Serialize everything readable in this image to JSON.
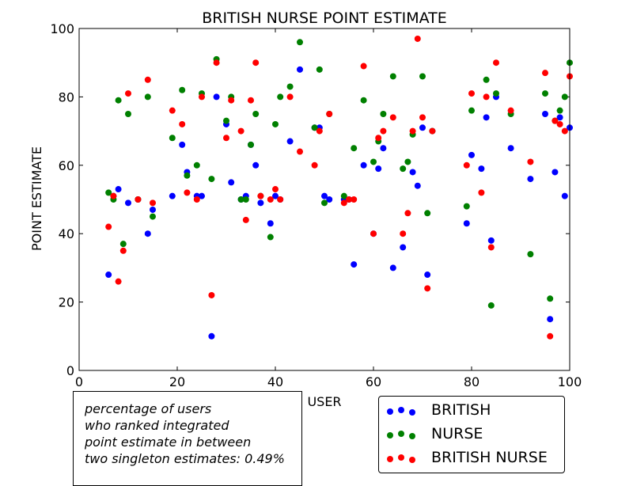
{
  "chart_data": {
    "type": "scatter",
    "title": "BRITISH NURSE POINT ESTIMATE",
    "xlabel": "USER",
    "ylabel": "POINT ESTIMATE",
    "xlim": [
      0,
      100
    ],
    "ylim": [
      0,
      100
    ],
    "xticks": [
      0,
      20,
      40,
      60,
      80,
      100
    ],
    "yticks": [
      0,
      20,
      40,
      60,
      80,
      100
    ],
    "grid": false,
    "legend_position": "bottom-right",
    "series": [
      {
        "name": "BRITISH",
        "color": "#0000ff",
        "points": [
          [
            6,
            28
          ],
          [
            7,
            51
          ],
          [
            8,
            53
          ],
          [
            10,
            49
          ],
          [
            12,
            50
          ],
          [
            14,
            40
          ],
          [
            15,
            47
          ],
          [
            19,
            51
          ],
          [
            21,
            66
          ],
          [
            22,
            58
          ],
          [
            24,
            51
          ],
          [
            25,
            51
          ],
          [
            27,
            10
          ],
          [
            28,
            80
          ],
          [
            30,
            72
          ],
          [
            31,
            55
          ],
          [
            33,
            50
          ],
          [
            34,
            51
          ],
          [
            35,
            66
          ],
          [
            36,
            60
          ],
          [
            37,
            49
          ],
          [
            39,
            43
          ],
          [
            40,
            51
          ],
          [
            41,
            50
          ],
          [
            43,
            67
          ],
          [
            45,
            88
          ],
          [
            48,
            71
          ],
          [
            49,
            71
          ],
          [
            50,
            51
          ],
          [
            51,
            50
          ],
          [
            54,
            50
          ],
          [
            55,
            50
          ],
          [
            56,
            31
          ],
          [
            58,
            60
          ],
          [
            60,
            40
          ],
          [
            61,
            59
          ],
          [
            62,
            65
          ],
          [
            64,
            30
          ],
          [
            66,
            36
          ],
          [
            68,
            58
          ],
          [
            69,
            54
          ],
          [
            70,
            71
          ],
          [
            71,
            28
          ],
          [
            72,
            70
          ],
          [
            79,
            43
          ],
          [
            80,
            63
          ],
          [
            82,
            59
          ],
          [
            83,
            74
          ],
          [
            84,
            38
          ],
          [
            85,
            80
          ],
          [
            88,
            65
          ],
          [
            92,
            56
          ],
          [
            95,
            75
          ],
          [
            96,
            15
          ],
          [
            97,
            58
          ],
          [
            98,
            74
          ],
          [
            99,
            51
          ],
          [
            100,
            71
          ]
        ]
      },
      {
        "name": "NURSE",
        "color": "#008000",
        "points": [
          [
            6,
            52
          ],
          [
            7,
            50
          ],
          [
            8,
            79
          ],
          [
            9,
            37
          ],
          [
            10,
            75
          ],
          [
            12,
            50
          ],
          [
            14,
            80
          ],
          [
            15,
            45
          ],
          [
            19,
            68
          ],
          [
            21,
            82
          ],
          [
            22,
            57
          ],
          [
            24,
            60
          ],
          [
            25,
            81
          ],
          [
            27,
            56
          ],
          [
            28,
            91
          ],
          [
            30,
            73
          ],
          [
            31,
            80
          ],
          [
            33,
            50
          ],
          [
            34,
            50
          ],
          [
            35,
            66
          ],
          [
            36,
            75
          ],
          [
            37,
            51
          ],
          [
            39,
            39
          ],
          [
            40,
            72
          ],
          [
            41,
            80
          ],
          [
            43,
            83
          ],
          [
            45,
            96
          ],
          [
            48,
            71
          ],
          [
            49,
            88
          ],
          [
            50,
            49
          ],
          [
            51,
            75
          ],
          [
            54,
            51
          ],
          [
            56,
            65
          ],
          [
            58,
            79
          ],
          [
            60,
            61
          ],
          [
            61,
            67
          ],
          [
            62,
            75
          ],
          [
            64,
            86
          ],
          [
            66,
            59
          ],
          [
            67,
            61
          ],
          [
            68,
            69
          ],
          [
            70,
            86
          ],
          [
            71,
            46
          ],
          [
            72,
            70
          ],
          [
            79,
            48
          ],
          [
            80,
            76
          ],
          [
            83,
            85
          ],
          [
            84,
            19
          ],
          [
            85,
            81
          ],
          [
            88,
            75
          ],
          [
            92,
            34
          ],
          [
            95,
            81
          ],
          [
            96,
            21
          ],
          [
            97,
            73
          ],
          [
            98,
            76
          ],
          [
            99,
            80
          ],
          [
            100,
            90
          ]
        ]
      },
      {
        "name": "BRITISH NURSE",
        "color": "#ff0000",
        "points": [
          [
            6,
            42
          ],
          [
            7,
            51
          ],
          [
            8,
            26
          ],
          [
            9,
            35
          ],
          [
            10,
            81
          ],
          [
            12,
            50
          ],
          [
            14,
            85
          ],
          [
            15,
            49
          ],
          [
            19,
            76
          ],
          [
            21,
            72
          ],
          [
            22,
            52
          ],
          [
            24,
            50
          ],
          [
            25,
            80
          ],
          [
            27,
            22
          ],
          [
            28,
            90
          ],
          [
            30,
            68
          ],
          [
            31,
            79
          ],
          [
            33,
            70
          ],
          [
            34,
            44
          ],
          [
            35,
            79
          ],
          [
            36,
            90
          ],
          [
            37,
            51
          ],
          [
            39,
            50
          ],
          [
            40,
            53
          ],
          [
            41,
            50
          ],
          [
            43,
            80
          ],
          [
            45,
            64
          ],
          [
            48,
            60
          ],
          [
            49,
            70
          ],
          [
            51,
            75
          ],
          [
            54,
            49
          ],
          [
            55,
            50
          ],
          [
            56,
            50
          ],
          [
            58,
            89
          ],
          [
            60,
            40
          ],
          [
            61,
            68
          ],
          [
            62,
            70
          ],
          [
            64,
            74
          ],
          [
            66,
            40
          ],
          [
            67,
            46
          ],
          [
            68,
            70
          ],
          [
            69,
            97
          ],
          [
            70,
            74
          ],
          [
            71,
            24
          ],
          [
            72,
            70
          ],
          [
            79,
            60
          ],
          [
            80,
            81
          ],
          [
            82,
            52
          ],
          [
            83,
            80
          ],
          [
            84,
            36
          ],
          [
            85,
            90
          ],
          [
            88,
            76
          ],
          [
            92,
            61
          ],
          [
            95,
            87
          ],
          [
            96,
            10
          ],
          [
            97,
            73
          ],
          [
            98,
            72
          ],
          [
            99,
            70
          ],
          [
            100,
            86
          ]
        ]
      }
    ]
  },
  "annotation": {
    "lines": [
      "percentage of users",
      "who ranked integrated",
      "point estimate in between",
      "two singleton estimates: 0.49%"
    ]
  },
  "legend": {
    "items": [
      {
        "label": "BRITISH",
        "color": "#0000ff"
      },
      {
        "label": "NURSE",
        "color": "#008000"
      },
      {
        "label": "BRITISH NURSE",
        "color": "#ff0000"
      }
    ]
  }
}
